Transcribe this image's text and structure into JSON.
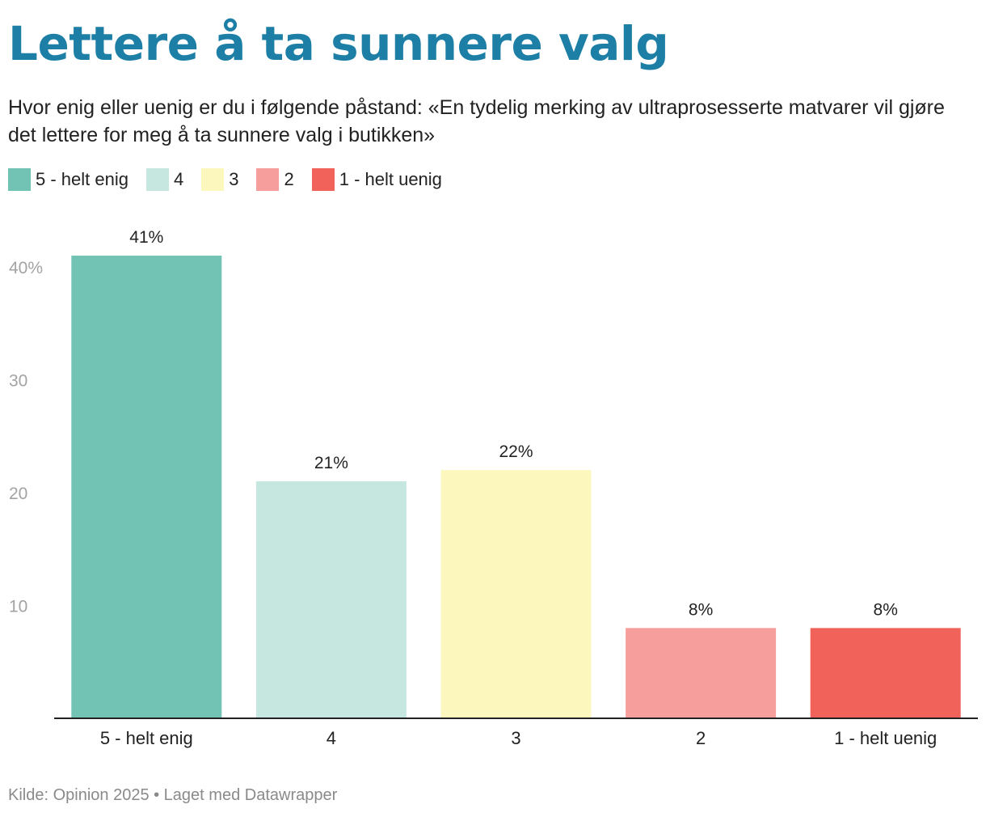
{
  "title": "Lettere å ta sunnere valg",
  "subtitle": "Hvor enig eller uenig er du i følgende påstand: «En tydelig merking av ultraprosesserte matvarer vil gjøre det lettere for meg å ta sunnere valg i butikken»",
  "legend": [
    {
      "label": "5 - helt enig",
      "color": "#72c3b3"
    },
    {
      "label": "4",
      "color": "#c6e7e0"
    },
    {
      "label": "3",
      "color": "#fbf7bd"
    },
    {
      "label": "2",
      "color": "#f59e9c"
    },
    {
      "label": "1 - helt uenig",
      "color": "#f0625a"
    }
  ],
  "chart_data": {
    "type": "bar",
    "categories": [
      "5 - helt enig",
      "4",
      "3",
      "2",
      "1 - helt uenig"
    ],
    "values": [
      41,
      21,
      22,
      8,
      8
    ],
    "value_labels": [
      "41%",
      "21%",
      "22%",
      "8%",
      "8%"
    ],
    "colors": [
      "#72c3b3",
      "#c6e7e0",
      "#fbf7bd",
      "#f59e9c",
      "#f0625a"
    ],
    "ylim": [
      0,
      40
    ],
    "yticks": [
      {
        "value": 10,
        "label": "10"
      },
      {
        "value": 20,
        "label": "20"
      },
      {
        "value": 30,
        "label": "30"
      },
      {
        "value": 40,
        "label": "40%"
      }
    ],
    "grid": false,
    "legend_position": "top-left"
  },
  "footer": "Kilde: Opinion 2025 • Laget med Datawrapper"
}
